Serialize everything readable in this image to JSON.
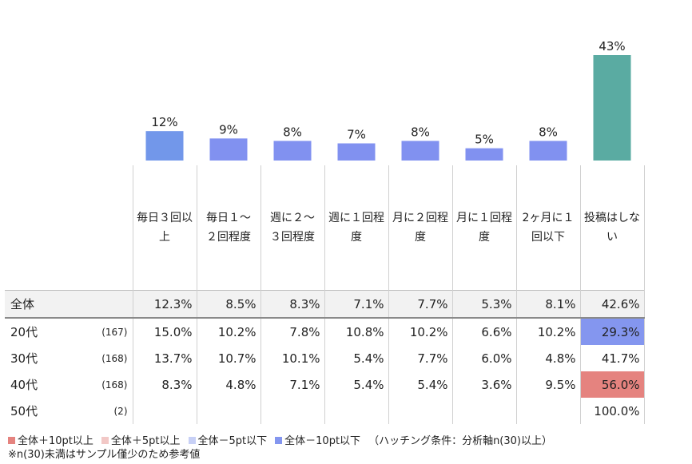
{
  "chart_data": {
    "type": "bar",
    "categories": [
      "毎日３回以上",
      "毎日１～２回程度",
      "週に２～３回程度",
      "週に１回程度",
      "月に２回程度",
      "月に１回程度",
      "2ヶ月に１回以下",
      "投稿はしない"
    ],
    "category_lines": [
      [
        "毎日３回以",
        "上"
      ],
      [
        "毎日１～",
        "２回程度"
      ],
      [
        "週に２～",
        "３回程度"
      ],
      [
        "週に１回程",
        "度"
      ],
      [
        "月に２回程",
        "度"
      ],
      [
        "月に１回程",
        "度"
      ],
      [
        "2ヶ月に１",
        "回以下"
      ],
      [
        "投稿はしな",
        "い"
      ]
    ],
    "values": [
      12,
      9,
      8,
      7,
      8,
      5,
      8,
      43
    ],
    "value_labels": [
      "12%",
      "9%",
      "8%",
      "7%",
      "8%",
      "5%",
      "8%",
      "43%"
    ],
    "bar_colors": [
      "#7297ea",
      "#8191f0",
      "#8191f0",
      "#8191f0",
      "#8191f0",
      "#8191f0",
      "#8191f0",
      "#5aaba2"
    ],
    "ylim": [
      0,
      43
    ]
  },
  "table": {
    "rows": [
      {
        "label": "全体",
        "n": "",
        "values": [
          "12.3%",
          "8.5%",
          "8.3%",
          "7.1%",
          "7.7%",
          "5.3%",
          "8.1%",
          "42.6%"
        ],
        "highlight": [
          "",
          "",
          "",
          "",
          "",
          "",
          "",
          ""
        ]
      },
      {
        "label": "20代",
        "n": "(167)",
        "values": [
          "15.0%",
          "10.2%",
          "7.8%",
          "10.8%",
          "10.2%",
          "6.6%",
          "10.2%",
          "29.3%"
        ],
        "highlight": [
          "",
          "",
          "",
          "",
          "",
          "",
          "",
          "strong-neg"
        ]
      },
      {
        "label": "30代",
        "n": "(168)",
        "values": [
          "13.7%",
          "10.7%",
          "10.1%",
          "5.4%",
          "7.7%",
          "6.0%",
          "4.8%",
          "41.7%"
        ],
        "highlight": [
          "",
          "",
          "",
          "",
          "",
          "",
          "",
          ""
        ]
      },
      {
        "label": "40代",
        "n": "(168)",
        "values": [
          "8.3%",
          "4.8%",
          "7.1%",
          "5.4%",
          "5.4%",
          "3.6%",
          "9.5%",
          "56.0%"
        ],
        "highlight": [
          "",
          "",
          "",
          "",
          "",
          "",
          "",
          "strong-pos"
        ]
      },
      {
        "label": "50代",
        "n": "(2)",
        "values": [
          "",
          "",
          "",
          "",
          "",
          "",
          "",
          "100.0%"
        ],
        "highlight": [
          "",
          "",
          "",
          "",
          "",
          "",
          "",
          ""
        ]
      }
    ]
  },
  "legend": {
    "items": [
      {
        "label": "全体＋10pt以上",
        "color": "#e5837f"
      },
      {
        "label": "全体＋5pt以上",
        "color": "#f2c8c6"
      },
      {
        "label": "全体－5pt以下",
        "color": "#c7d0f6"
      },
      {
        "label": "全体－10pt以下",
        "color": "#8496ef"
      }
    ],
    "condition": "（ハッチング条件：分析軸n(30)以上）"
  },
  "note": "※n(30)未満はサンプル僅少のため参考値"
}
